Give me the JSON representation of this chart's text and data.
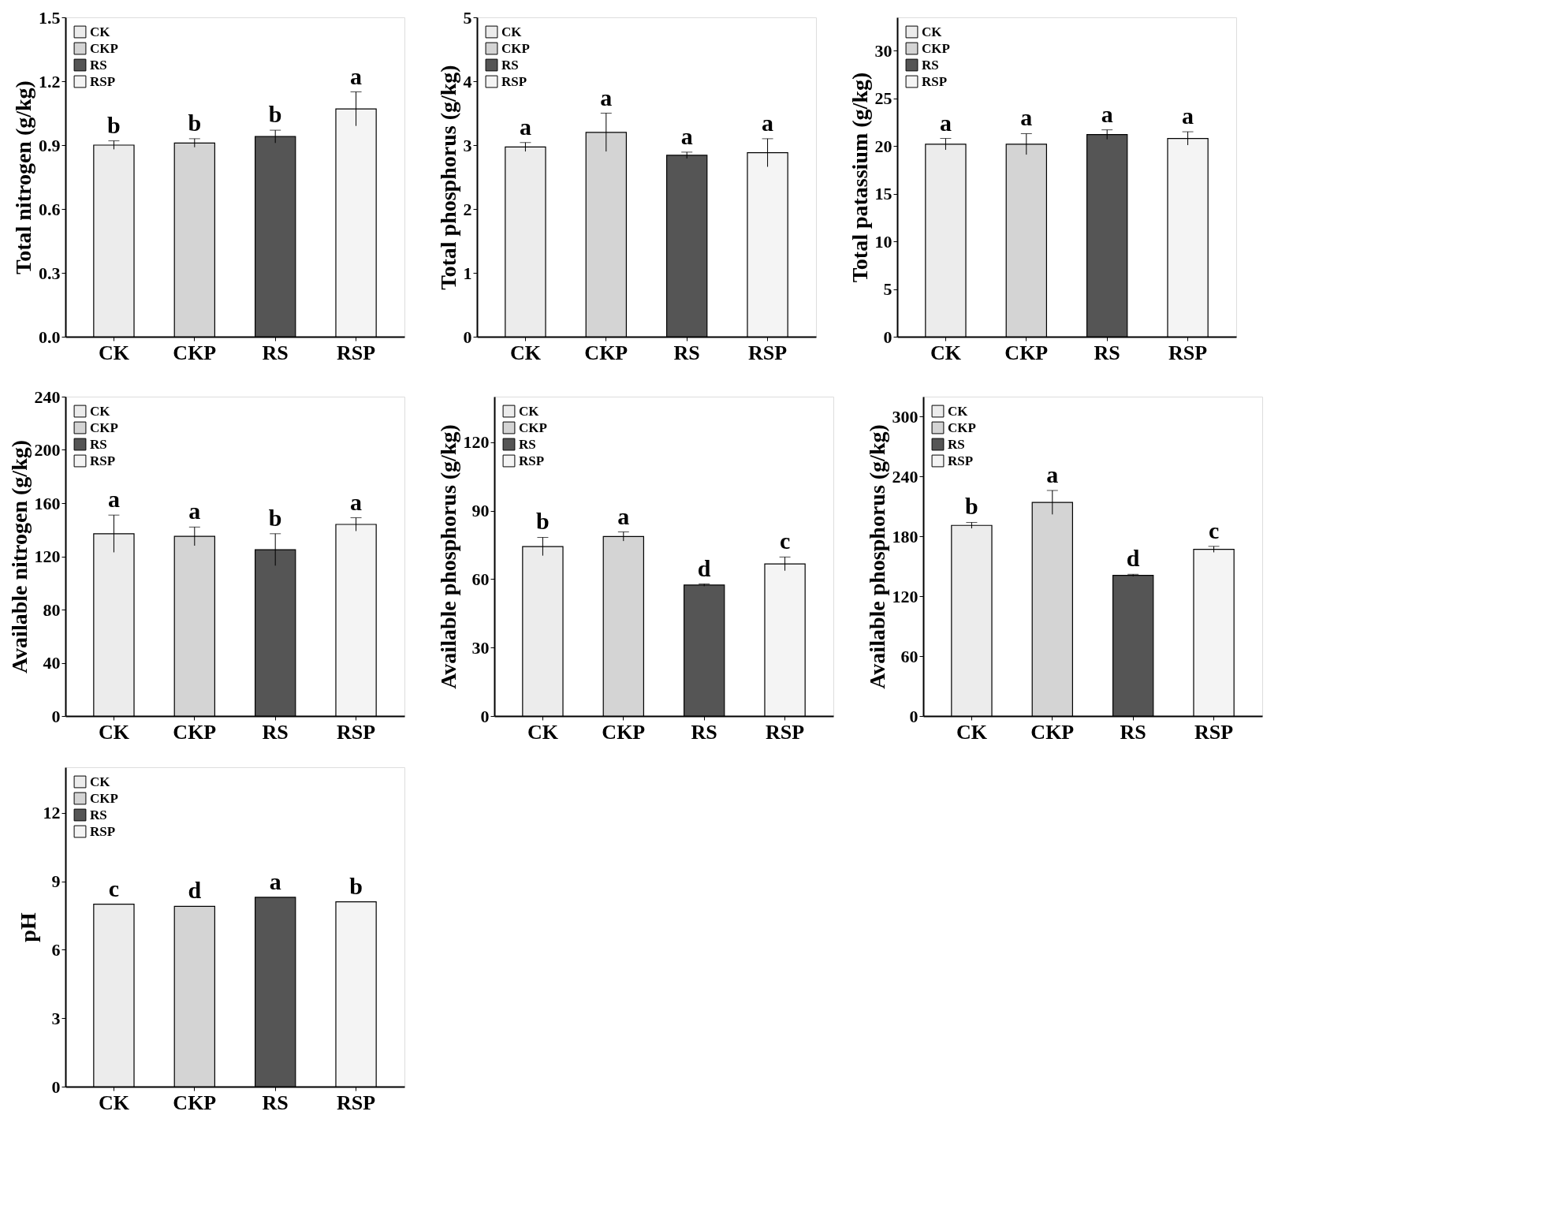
{
  "chart_data": [
    {
      "type": "bar",
      "ylabel": "Total nitrogen (g/kg)",
      "categories": [
        "CK",
        "CKP",
        "RS",
        "RSP"
      ],
      "ylim": [
        0,
        1.5
      ],
      "yticks": [
        {
          "value": 0,
          "label": "0.0"
        },
        0.3,
        0.6,
        0.9,
        1.2,
        {
          "value": 1.5,
          "label": "1.5"
        }
      ],
      "legend": "top left",
      "series": [
        {
          "name": "CK",
          "color": "#ececec",
          "values": [
            0.9,
            null,
            null,
            null
          ],
          "errors": [
            0.02,
            null,
            null,
            null
          ]
        },
        {
          "name": "CKP",
          "color": "#d4d4d4",
          "values": [
            null,
            0.91,
            null,
            null
          ],
          "errors": [
            null,
            0.02,
            null,
            null
          ]
        },
        {
          "name": "RS",
          "color": "#555555",
          "values": [
            null,
            null,
            0.94,
            null
          ],
          "errors": [
            null,
            null,
            0.03,
            null
          ]
        },
        {
          "name": "RSP",
          "color": "#f4f4f4",
          "values": [
            null,
            null,
            null,
            1.07
          ],
          "errors": [
            null,
            null,
            null,
            0.08
          ]
        }
      ],
      "annotations": [
        {
          "text": "b",
          "x": "CK",
          "y": 0.92
        },
        {
          "text": "b",
          "x": "CKP",
          "y": 0.93
        },
        {
          "text": "b",
          "x": "RS",
          "y": 0.97
        },
        {
          "text": "a",
          "x": "RSP",
          "y": 1.15
        }
      ]
    },
    {
      "type": "bar",
      "ylabel": "Total phosphorus (g/kg)",
      "categories": [
        "CK",
        "CKP",
        "RS",
        "RSP"
      ],
      "ylim": [
        0,
        5
      ],
      "yticks": [
        0,
        1,
        2,
        3,
        4,
        5
      ],
      "legend": "top left",
      "series": [
        {
          "name": "CK",
          "color": "#ececec",
          "values": [
            2.97,
            null,
            null,
            null
          ],
          "errors": [
            0.07,
            null,
            null,
            null
          ]
        },
        {
          "name": "CKP",
          "color": "#d4d4d4",
          "values": [
            null,
            3.2,
            null,
            null
          ],
          "errors": [
            null,
            0.3,
            null,
            null
          ]
        },
        {
          "name": "RS",
          "color": "#555555",
          "values": [
            null,
            null,
            2.84,
            null
          ],
          "errors": [
            null,
            null,
            0.05,
            null
          ]
        },
        {
          "name": "RSP",
          "color": "#f4f4f4",
          "values": [
            null,
            null,
            null,
            2.88
          ],
          "errors": [
            null,
            null,
            null,
            0.22
          ]
        }
      ],
      "annotations": [
        {
          "text": "a",
          "x": "CK",
          "y": 3.04
        },
        {
          "text": "a",
          "x": "CKP",
          "y": 3.5
        },
        {
          "text": "a",
          "x": "RS",
          "y": 2.89
        },
        {
          "text": "a",
          "x": "RSP",
          "y": 3.1
        }
      ]
    },
    {
      "type": "bar",
      "ylabel": "Total patassium (g/kg)",
      "categories": [
        "CK",
        "CKP",
        "RS",
        "RSP"
      ],
      "ylim": [
        0,
        33.5
      ],
      "yticks": [
        0,
        5,
        10,
        15,
        20,
        25,
        30
      ],
      "legend": "top left",
      "series": [
        {
          "name": "CK",
          "color": "#ececec",
          "values": [
            20.2,
            null,
            null,
            null
          ],
          "errors": [
            0.6,
            null,
            null,
            null
          ]
        },
        {
          "name": "CKP",
          "color": "#d4d4d4",
          "values": [
            null,
            20.2,
            null,
            null
          ],
          "errors": [
            null,
            1.1,
            null,
            null
          ]
        },
        {
          "name": "RS",
          "color": "#555555",
          "values": [
            null,
            null,
            21.2,
            null
          ],
          "errors": [
            null,
            null,
            0.5,
            null
          ]
        },
        {
          "name": "RSP",
          "color": "#f4f4f4",
          "values": [
            null,
            null,
            null,
            20.8
          ],
          "errors": [
            null,
            null,
            null,
            0.7
          ]
        }
      ],
      "annotations": [
        {
          "text": "a",
          "x": "CK",
          "y": 20.8
        },
        {
          "text": "a",
          "x": "CKP",
          "y": 21.3
        },
        {
          "text": "a",
          "x": "RS",
          "y": 21.7
        },
        {
          "text": "a",
          "x": "RSP",
          "y": 21.5
        }
      ]
    },
    {
      "type": "bar",
      "ylabel": "Available nitrogen (g/kg)",
      "categories": [
        "CK",
        "CKP",
        "RS",
        "RSP"
      ],
      "ylim": [
        0,
        240
      ],
      "yticks": [
        0,
        40,
        80,
        120,
        160,
        200,
        240
      ],
      "legend": "top left",
      "series": [
        {
          "name": "CK",
          "color": "#ececec",
          "values": [
            137,
            null,
            null,
            null
          ],
          "errors": [
            14,
            null,
            null,
            null
          ]
        },
        {
          "name": "CKP",
          "color": "#d4d4d4",
          "values": [
            null,
            135,
            null,
            null
          ],
          "errors": [
            null,
            7,
            null,
            null
          ]
        },
        {
          "name": "RS",
          "color": "#555555",
          "values": [
            null,
            null,
            125,
            null
          ],
          "errors": [
            null,
            null,
            12,
            null
          ]
        },
        {
          "name": "RSP",
          "color": "#f4f4f4",
          "values": [
            null,
            null,
            null,
            144
          ],
          "errors": [
            null,
            null,
            null,
            5
          ]
        }
      ],
      "annotations": [
        {
          "text": "a",
          "x": "CK",
          "y": 151
        },
        {
          "text": "a",
          "x": "CKP",
          "y": 142
        },
        {
          "text": "b",
          "x": "RS",
          "y": 137
        },
        {
          "text": "a",
          "x": "RSP",
          "y": 149
        }
      ]
    },
    {
      "type": "bar",
      "ylabel": "Available phosphorus (g/kg)",
      "categories": [
        "CK",
        "CKP",
        "RS",
        "RSP"
      ],
      "ylim": [
        0,
        140
      ],
      "yticks": [
        0,
        30,
        60,
        90,
        120
      ],
      "legend": "top left",
      "series": [
        {
          "name": "CK",
          "color": "#ececec",
          "values": [
            74.3,
            null,
            null,
            null
          ],
          "errors": [
            4,
            null,
            null,
            null
          ]
        },
        {
          "name": "CKP",
          "color": "#d4d4d4",
          "values": [
            null,
            78.7,
            null,
            null
          ],
          "errors": [
            null,
            2,
            null,
            null
          ]
        },
        {
          "name": "RS",
          "color": "#555555",
          "values": [
            null,
            null,
            57.4,
            null
          ],
          "errors": [
            null,
            null,
            0.5,
            null
          ]
        },
        {
          "name": "RSP",
          "color": "#f4f4f4",
          "values": [
            null,
            null,
            null,
            66.7
          ],
          "errors": [
            null,
            null,
            null,
            3
          ]
        }
      ],
      "annotations": [
        {
          "text": "b",
          "x": "CK",
          "y": 78.3
        },
        {
          "text": "a",
          "x": "CKP",
          "y": 80.7
        },
        {
          "text": "d",
          "x": "RS",
          "y": 57.9
        },
        {
          "text": "c",
          "x": "RSP",
          "y": 69.7
        }
      ]
    },
    {
      "type": "bar",
      "ylabel": "Available phosphorus (g/kg)",
      "categories": [
        "CK",
        "CKP",
        "RS",
        "RSP"
      ],
      "ylim": [
        0,
        320
      ],
      "yticks": [
        0,
        60,
        120,
        180,
        240,
        300
      ],
      "legend": "top left",
      "series": [
        {
          "name": "CK",
          "color": "#ececec",
          "values": [
            191,
            null,
            null,
            null
          ],
          "errors": [
            3,
            null,
            null,
            null
          ]
        },
        {
          "name": "CKP",
          "color": "#d4d4d4",
          "values": [
            null,
            214,
            null,
            null
          ],
          "errors": [
            null,
            12,
            null,
            null
          ]
        },
        {
          "name": "RS",
          "color": "#555555",
          "values": [
            null,
            null,
            141,
            null
          ],
          "errors": [
            null,
            null,
            1,
            null
          ]
        },
        {
          "name": "RSP",
          "color": "#f4f4f4",
          "values": [
            null,
            null,
            null,
            167
          ],
          "errors": [
            null,
            null,
            null,
            3
          ]
        }
      ],
      "annotations": [
        {
          "text": "b",
          "x": "CK",
          "y": 194
        },
        {
          "text": "a",
          "x": "CKP",
          "y": 226
        },
        {
          "text": "d",
          "x": "RS",
          "y": 142
        },
        {
          "text": "c",
          "x": "RSP",
          "y": 170
        }
      ]
    },
    {
      "type": "bar",
      "ylabel": "pH",
      "categories": [
        "CK",
        "CKP",
        "RS",
        "RSP"
      ],
      "ylim": [
        0,
        14
      ],
      "yticks": [
        0,
        3,
        6,
        9,
        12
      ],
      "legend": "top left",
      "series": [
        {
          "name": "CK",
          "color": "#ececec",
          "values": [
            8.0,
            null,
            null,
            null
          ]
        },
        {
          "name": "CKP",
          "color": "#d4d4d4",
          "values": [
            null,
            7.9,
            null,
            null
          ]
        },
        {
          "name": "RS",
          "color": "#555555",
          "values": [
            null,
            null,
            8.3,
            null
          ]
        },
        {
          "name": "RSP",
          "color": "#f4f4f4",
          "values": [
            null,
            null,
            null,
            8.1
          ]
        }
      ],
      "annotations": [
        {
          "text": "c",
          "x": "CK",
          "y": 8.0
        },
        {
          "text": "d",
          "x": "CKP",
          "y": 7.9
        },
        {
          "text": "a",
          "x": "RS",
          "y": 8.3
        },
        {
          "text": "b",
          "x": "RSP",
          "y": 8.1
        }
      ]
    }
  ]
}
